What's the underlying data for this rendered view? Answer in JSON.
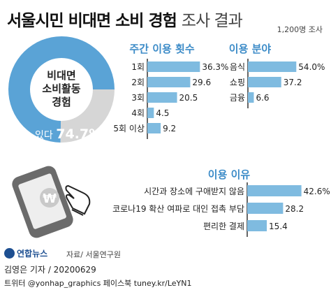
{
  "header": {
    "title_bold": "서울시민 비대면 소비 경험",
    "title_light": "조사 결과",
    "sample_size": "1,200명 조사"
  },
  "donut": {
    "center_lines": [
      "비대면",
      "소비활동",
      "경험"
    ],
    "yes_label": "있다",
    "yes_value": "74.7%",
    "fill_color": "#5aa3d6",
    "rest_color": "#d6d6d6"
  },
  "colors": {
    "bar": "#7fbbe0",
    "section_title": "#3d8cc8",
    "axis": "#333333"
  },
  "icons": [
    "smartphone-won-icon",
    "pointing-hand-icon"
  ],
  "chart_data": [
    {
      "type": "bar",
      "title": "주간 이용 횟수",
      "categories": [
        "1회",
        "2회",
        "3회",
        "4회",
        "5회 이상"
      ],
      "values": [
        36.3,
        29.6,
        20.5,
        4.5,
        9.2
      ],
      "value_labels": [
        "36.3%",
        "29.6",
        "20.5",
        "4.5",
        "9.2"
      ],
      "xlim": [
        0,
        40
      ]
    },
    {
      "type": "bar",
      "title": "이용 분야",
      "categories": [
        "음식",
        "쇼핑",
        "금융"
      ],
      "values": [
        54.0,
        37.2,
        6.6
      ],
      "value_labels": [
        "54.0%",
        "37.2",
        "6.6"
      ],
      "xlim": [
        0,
        60
      ]
    },
    {
      "type": "bar",
      "title": "이용 이유",
      "categories": [
        "시간과 장소에 구애받지 않음",
        "코로나19 확산 여파로 대인 접촉 부담",
        "편리한 결제"
      ],
      "values": [
        42.6,
        28.2,
        15.4
      ],
      "value_labels": [
        "42.6%",
        "28.2",
        "15.4"
      ],
      "xlim": [
        0,
        45
      ]
    }
  ],
  "footer": {
    "logo_text": "연합뉴스",
    "source": "자료/ 서울연구원",
    "byline": "김영은 기자 / 20200629",
    "credits": "트위터 @yonhap_graphics  페이스북 tuney.kr/LeYN1"
  }
}
